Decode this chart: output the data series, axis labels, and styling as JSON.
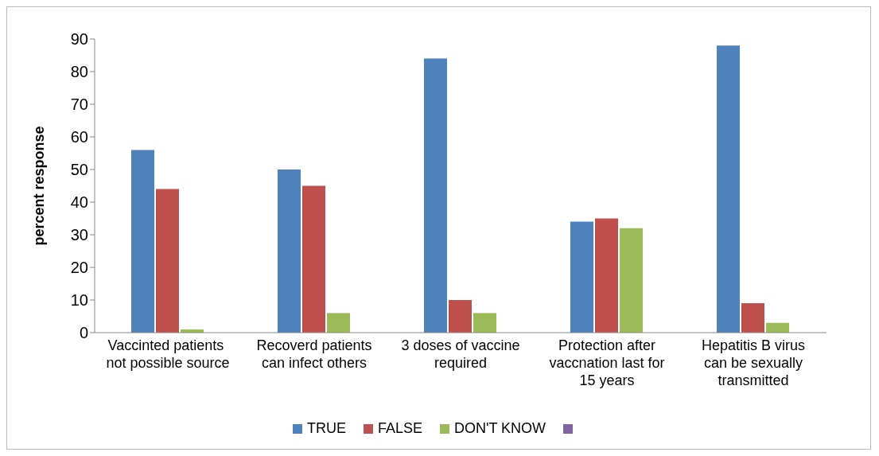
{
  "chart_data": {
    "type": "bar",
    "ylabel": "percent response",
    "categories": [
      "Vaccinted patients  not possible source",
      "Recoverd patients can infect others",
      "3 doses of vaccine required",
      "Protection after vaccnation last for 15 years",
      "Hepatitis B virus can be sexually transmitted"
    ],
    "series": [
      {
        "name": "TRUE",
        "color": "#4f81bd",
        "values": [
          56,
          50,
          84,
          34,
          88
        ]
      },
      {
        "name": "FALSE",
        "color": "#c0504d",
        "values": [
          44,
          45,
          10,
          35,
          9
        ]
      },
      {
        "name": "DON'T KNOW",
        "color": "#9bbb59",
        "values": [
          1,
          6,
          6,
          32,
          3
        ]
      }
    ],
    "ylim": [
      0,
      90
    ],
    "yticks": [
      0,
      10,
      20,
      30,
      40,
      50,
      60,
      70,
      80,
      90
    ],
    "grid": false,
    "legend": "bottom"
  }
}
